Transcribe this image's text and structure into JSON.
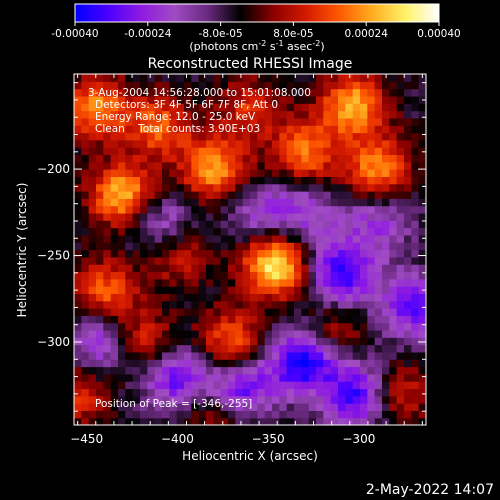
{
  "colorbar": {
    "ticks": [
      "-0.00040",
      "-0.00024",
      "-8.0e-05",
      "8.0e-05",
      "0.00024",
      "0.00040"
    ],
    "tick_values": [
      -0.0004,
      -0.00024,
      -8e-05,
      8e-05,
      0.00024,
      0.0004
    ],
    "units_prefix": "(photons cm",
    "units_sup1": "-2",
    "units_mid": " s",
    "units_sup2": "-1",
    "units_end": " asec",
    "units_sup3": "-2",
    "units_close": ")",
    "colors": [
      "#0000ff",
      "#4b00ff",
      "#8f1ae0",
      "#a04bc4",
      "#6a2a80",
      "#000000",
      "#8c0000",
      "#d51a00",
      "#ff5a00",
      "#ffae20",
      "#fff36a",
      "#ffffff"
    ]
  },
  "annotations": {
    "line1": "3-Aug-2004 14:56:28.000 to 15:01:08.000",
    "line2": "Detectors: 3F 4F 5F 6F 7F 8F, Att 0",
    "line3": "Energy Range: 12.0 - 25.0 keV",
    "line4": "Clean    Total counts: 3.90E+03",
    "peak": "Position of Peak = [-346,-255]"
  },
  "footer": {
    "date": "2-May-2022 14:07"
  },
  "chart_data": {
    "type": "heatmap",
    "title": "Reconstructed RHESSI Image",
    "xlabel": "Heliocentric X (arcsec)",
    "ylabel": "Heliocentric Y (arcsec)",
    "xlim": [
      -457,
      -263
    ],
    "ylim": [
      -348,
      -145
    ],
    "xticks": [
      -450,
      -400,
      -350,
      -300
    ],
    "yticks": [
      -200,
      -250,
      -300
    ],
    "zlim": [
      -0.0004,
      0.0004
    ],
    "peak": [
      -346,
      -255
    ],
    "blobs": [
      {
        "x": -346,
        "y": -255,
        "value": 0.0004
      },
      {
        "x": -430,
        "y": -215,
        "value": 0.00034
      },
      {
        "x": -380,
        "y": -200,
        "value": 0.0003
      },
      {
        "x": -303,
        "y": -163,
        "value": 0.00032
      },
      {
        "x": -290,
        "y": -200,
        "value": 0.00028
      },
      {
        "x": -330,
        "y": -190,
        "value": 0.00026
      },
      {
        "x": -445,
        "y": -165,
        "value": 0.00028
      },
      {
        "x": -410,
        "y": -175,
        "value": 0.00024
      },
      {
        "x": -440,
        "y": -270,
        "value": 0.00024
      },
      {
        "x": -420,
        "y": -300,
        "value": 0.00022
      },
      {
        "x": -370,
        "y": -300,
        "value": 0.00026
      },
      {
        "x": -400,
        "y": -250,
        "value": 0.00016
      },
      {
        "x": -455,
        "y": -330,
        "value": 0.00018
      },
      {
        "x": -315,
        "y": -295,
        "value": 0.00016
      },
      {
        "x": -280,
        "y": -330,
        "value": 0.0002
      },
      {
        "x": -380,
        "y": -340,
        "value": 0.00014
      },
      {
        "x": -360,
        "y": -165,
        "value": 0.00018
      },
      {
        "x": -330,
        "y": -225,
        "value": -0.00016
      },
      {
        "x": -310,
        "y": -260,
        "value": -0.0003
      },
      {
        "x": -330,
        "y": -310,
        "value": -0.00036
      },
      {
        "x": -300,
        "y": -330,
        "value": -0.00032
      },
      {
        "x": -365,
        "y": -325,
        "value": -0.00028
      },
      {
        "x": -400,
        "y": -320,
        "value": -0.00026
      },
      {
        "x": -440,
        "y": -300,
        "value": -0.00022
      },
      {
        "x": -270,
        "y": -280,
        "value": -0.00024
      },
      {
        "x": -410,
        "y": -230,
        "value": -0.00018
      },
      {
        "x": -290,
        "y": -230,
        "value": -0.00016
      },
      {
        "x": -355,
        "y": -225,
        "value": -0.00014
      }
    ]
  }
}
